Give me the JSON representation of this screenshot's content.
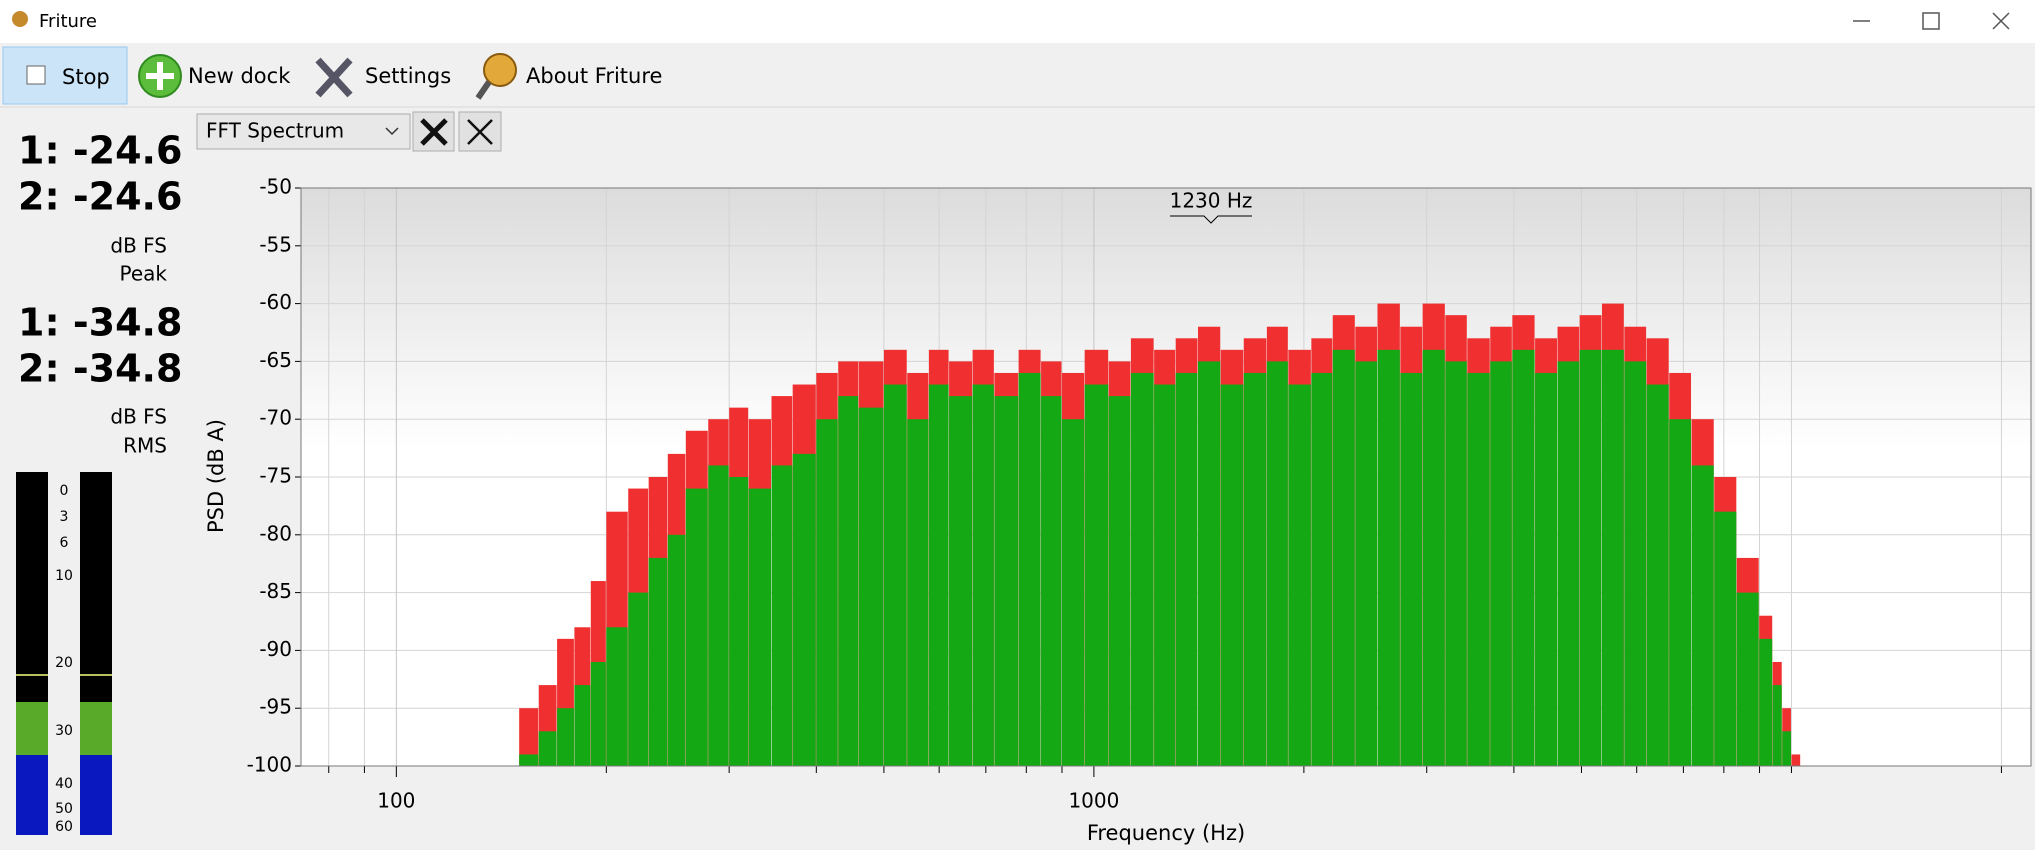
{
  "window": {
    "title": "Friture"
  },
  "toolbar": {
    "buttons": [
      "Stop",
      "New dock",
      "Settings",
      "About Friture"
    ]
  },
  "dock": {
    "selector": "FFT Spectrum"
  },
  "levels": {
    "peak": [
      "1: -24.6",
      "2: -24.6"
    ],
    "peak_unit": "dB FS",
    "peak_label": "Peak",
    "rms": [
      "1: -34.8",
      "2: -34.8"
    ],
    "rms_unit": "dB FS",
    "rms_label": "RMS",
    "meter_scale": [
      0,
      3,
      6,
      10,
      20,
      30,
      40,
      50,
      60
    ]
  },
  "chart_data": {
    "type": "bar",
    "xscale": "log",
    "grid": true,
    "xlabel": "Frequency (Hz)",
    "ylabel": "PSD (dB A)",
    "annotation": "1230 Hz",
    "xlim": [
      73,
      22050
    ],
    "ylim": [
      -100,
      -50
    ],
    "xticks": [
      100,
      1000
    ],
    "xminor_ticks": [
      80,
      90,
      200,
      300,
      400,
      500,
      600,
      700,
      800,
      900,
      2000,
      3000,
      4000,
      5000,
      6000,
      7000,
      8000,
      9000,
      10000,
      20000
    ],
    "yticks": [
      -50,
      -55,
      -60,
      -65,
      -70,
      -75,
      -80,
      -85,
      -90,
      -95,
      -100
    ],
    "x": [
      150,
      160,
      170,
      180,
      190,
      200,
      215,
      230,
      245,
      260,
      280,
      300,
      320,
      345,
      370,
      400,
      430,
      460,
      500,
      540,
      580,
      620,
      670,
      720,
      780,
      840,
      900,
      970,
      1050,
      1130,
      1220,
      1310,
      1410,
      1520,
      1640,
      1770,
      1900,
      2050,
      2200,
      2370,
      2550,
      2750,
      2960,
      3190,
      3430,
      3700,
      3980,
      4290,
      4620,
      4970,
      5350,
      5760,
      6200,
      6680,
      7190,
      7750,
      8350,
      8990,
      9400,
      9700,
      10000
    ],
    "series": [
      {
        "color": "#f03030",
        "values": [
          -95,
          -93,
          -89,
          -88,
          -84,
          -78,
          -76,
          -75,
          -73,
          -71,
          -70,
          -69,
          -70,
          -68,
          -67,
          -66,
          -65,
          -65,
          -64,
          -66,
          -64,
          -65,
          -64,
          -66,
          -64,
          -65,
          -66,
          -64,
          -65,
          -63,
          -64,
          -63,
          -62,
          -64,
          -63,
          -62,
          -64,
          -63,
          -61,
          -62,
          -60,
          -62,
          -60,
          -61,
          -63,
          -62,
          -61,
          -63,
          -62,
          -61,
          -60,
          -62,
          -63,
          -66,
          -70,
          -75,
          -82,
          -87,
          -91,
          -95,
          -99
        ]
      },
      {
        "color": "#14a814",
        "values": [
          -99,
          -97,
          -95,
          -93,
          -91,
          -88,
          -85,
          -82,
          -80,
          -76,
          -74,
          -75,
          -76,
          -74,
          -73,
          -70,
          -68,
          -69,
          -67,
          -70,
          -67,
          -68,
          -67,
          -68,
          -66,
          -68,
          -70,
          -67,
          -68,
          -66,
          -67,
          -66,
          -65,
          -67,
          -66,
          -65,
          -67,
          -66,
          -64,
          -65,
          -64,
          -66,
          -64,
          -65,
          -66,
          -65,
          -64,
          -66,
          -65,
          -64,
          -64,
          -65,
          -67,
          -70,
          -74,
          -78,
          -85,
          -89,
          -93,
          -97,
          -100
        ]
      }
    ]
  }
}
